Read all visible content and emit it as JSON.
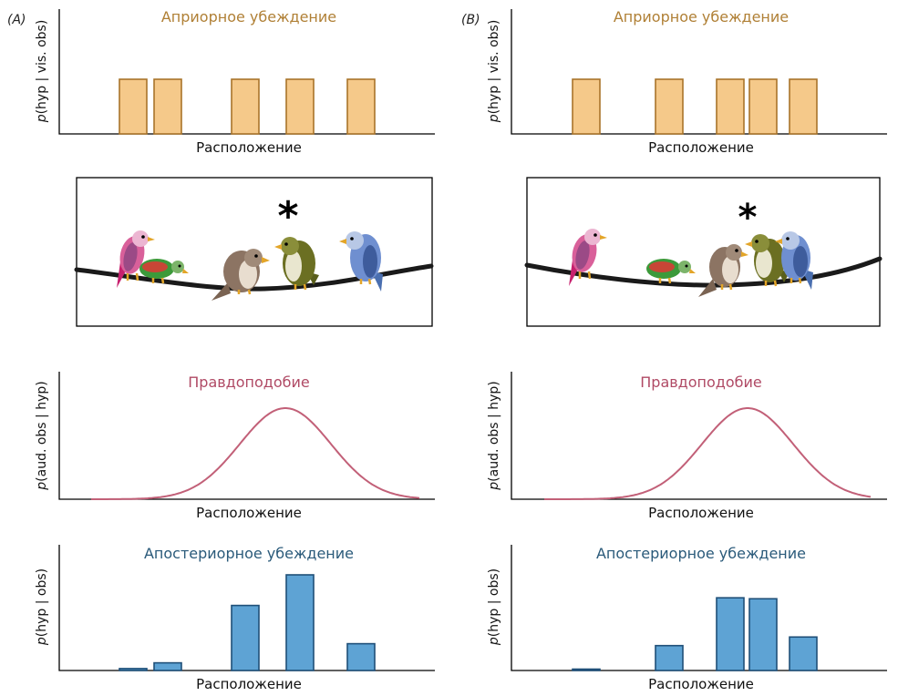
{
  "panels": [
    {
      "label": "(A)",
      "prior": {
        "title": "Априорное убеждение",
        "ylabel_italic": "p",
        "ylabel": "(hyp | vis. obs)",
        "xlabel": "Расположение",
        "values": [
          1,
          1,
          1,
          1,
          1
        ]
      },
      "scene": {
        "star": "*"
      },
      "likelihood": {
        "title": "Правдоподобие",
        "ylabel_italic": "p",
        "ylabel": "(aud. obs | hyp)",
        "xlabel": "Расположение"
      },
      "posterior": {
        "title": "Апостериорное убеждение",
        "ylabel_italic": "p",
        "ylabel": "(hyp | obs)",
        "xlabel": "Расположение",
        "values": [
          0.02,
          0.08,
          0.68,
          1.0,
          0.28
        ]
      }
    },
    {
      "label": "(B)",
      "prior": {
        "title": "Априорное убеждение",
        "ylabel_italic": "p",
        "ylabel": "(hyp | vis. obs)",
        "xlabel": "Расположение",
        "values": [
          1,
          1,
          1,
          1,
          1
        ]
      },
      "scene": {
        "star": "*"
      },
      "likelihood": {
        "title": "Правдоподобие",
        "ylabel_italic": "p",
        "ylabel": "(aud. obs | hyp)",
        "xlabel": "Расположение"
      },
      "posterior": {
        "title": "Апостериорное убеждение",
        "ylabel_italic": "p",
        "ylabel": "(hyp | obs)",
        "xlabel": "Расположение",
        "values": [
          0.01,
          0.26,
          0.76,
          0.75,
          0.35
        ]
      }
    }
  ],
  "colors": {
    "prior_fill": "#f5c98a",
    "prior_stroke": "#a8742a",
    "prior_title": "#b08036",
    "likelihood_line": "#c26078",
    "likelihood_title": "#b04a65",
    "posterior_fill": "#5ea3d4",
    "posterior_stroke": "#1f4f78",
    "posterior_title": "#2a5a7a"
  },
  "chart_data": [
    {
      "type": "bar",
      "panel": "(A)",
      "title": "Априорное убеждение",
      "xlabel": "Расположение",
      "ylabel": "p(hyp | vis. obs)",
      "series": [
        {
          "values": [
            1,
            1,
            1,
            1,
            1
          ]
        }
      ]
    },
    {
      "type": "line",
      "panel": "(A)",
      "title": "Правдоподобие",
      "xlabel": "Расположение",
      "ylabel": "p(aud. obs | hyp)",
      "shape": "gaussian"
    },
    {
      "type": "bar",
      "panel": "(A)",
      "title": "Апостериорное убеждение",
      "xlabel": "Расположение",
      "ylabel": "p(hyp | obs)",
      "series": [
        {
          "values": [
            0.02,
            0.08,
            0.68,
            1.0,
            0.28
          ]
        }
      ]
    },
    {
      "type": "bar",
      "panel": "(B)",
      "title": "Априорное убеждение",
      "xlabel": "Расположение",
      "ylabel": "p(hyp | vis. obs)",
      "series": [
        {
          "values": [
            1,
            1,
            1,
            1,
            1
          ]
        }
      ]
    },
    {
      "type": "line",
      "panel": "(B)",
      "title": "Правдоподобие",
      "xlabel": "Расположение",
      "ylabel": "p(aud. obs | hyp)",
      "shape": "gaussian"
    },
    {
      "type": "bar",
      "panel": "(B)",
      "title": "Апостериорное убеждение",
      "xlabel": "Расположение",
      "ylabel": "p(hyp | obs)",
      "series": [
        {
          "values": [
            0.01,
            0.26,
            0.76,
            0.75,
            0.35
          ]
        }
      ]
    }
  ]
}
